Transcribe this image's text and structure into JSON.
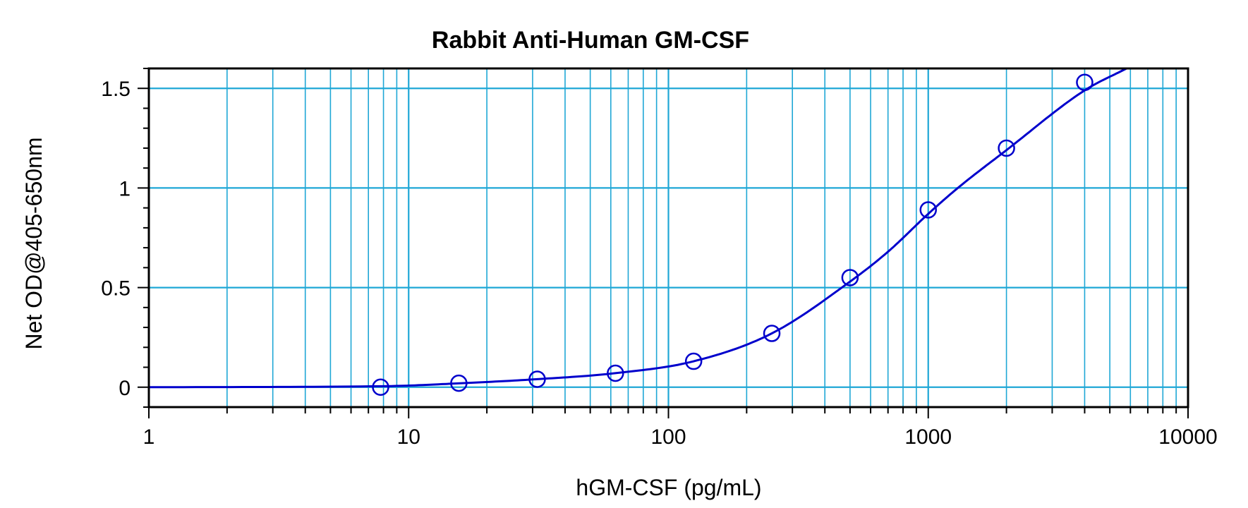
{
  "chart_data": {
    "type": "scatter",
    "title": "Rabbit Anti-Human GM-CSF",
    "xlabel": "hGM-CSF (pg/mL)",
    "ylabel": "Net OD@405-650nm",
    "x_scale": "log",
    "xlim": [
      1,
      10000
    ],
    "ylim": [
      -0.1,
      1.6
    ],
    "x_ticks": [
      1,
      10,
      100,
      1000,
      10000
    ],
    "x_tick_labels": [
      "1",
      "10",
      "100",
      "1000",
      "10000"
    ],
    "y_ticks": [
      0,
      0.5,
      1,
      1.5
    ],
    "y_tick_labels": [
      "0",
      "0.5",
      "1",
      "1.5"
    ],
    "grid": true,
    "series": [
      {
        "x": [
          7.8,
          15.6,
          31.25,
          62.5,
          125,
          250,
          500,
          1000,
          2000,
          4000
        ],
        "y": [
          0.0,
          0.02,
          0.04,
          0.07,
          0.13,
          0.27,
          0.55,
          0.89,
          1.2,
          1.53
        ]
      }
    ],
    "fit_curve": {
      "x": [
        1,
        8,
        16,
        31,
        62,
        125,
        250,
        500,
        700,
        1000,
        1300,
        2000,
        4000,
        5800
      ],
      "y": [
        0.0,
        0.005,
        0.02,
        0.04,
        0.07,
        0.13,
        0.27,
        0.53,
        0.68,
        0.87,
        1.0,
        1.19,
        1.49,
        1.6
      ]
    },
    "colors": {
      "series": "#0000cc",
      "grid": "#1fa7d6",
      "axis": "#000000"
    }
  }
}
